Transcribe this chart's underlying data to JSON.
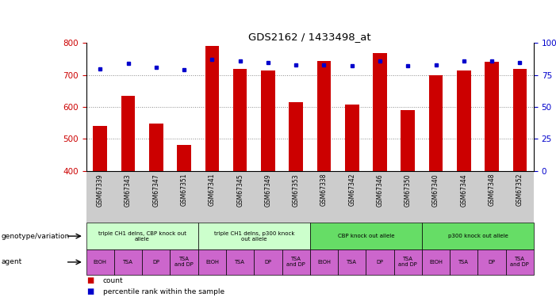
{
  "title": "GDS2162 / 1433498_at",
  "samples": [
    "GSM67339",
    "GSM67343",
    "GSM67347",
    "GSM67351",
    "GSM67341",
    "GSM67345",
    "GSM67349",
    "GSM67353",
    "GSM67338",
    "GSM67342",
    "GSM67346",
    "GSM67350",
    "GSM67340",
    "GSM67344",
    "GSM67348",
    "GSM67352"
  ],
  "counts": [
    540,
    635,
    548,
    480,
    790,
    720,
    715,
    615,
    745,
    607,
    768,
    590,
    700,
    715,
    742,
    718
  ],
  "percentiles": [
    80,
    84,
    81,
    79,
    87,
    86,
    85,
    83,
    83,
    82,
    86,
    82,
    83,
    86,
    86,
    85
  ],
  "y_min": 400,
  "y_max": 800,
  "y_ticks": [
    400,
    500,
    600,
    700,
    800
  ],
  "y2_ticks": [
    0,
    25,
    50,
    75,
    100
  ],
  "bar_color": "#cc0000",
  "dot_color": "#0000cc",
  "grid_color": "#888888",
  "bg_color": "#ffffff",
  "plot_bg": "#ffffff",
  "tick_label_color_left": "#cc0000",
  "tick_label_color_right": "#0000cc",
  "genotype_groups": [
    {
      "label": "triple CH1 delns, CBP knock out\nallele",
      "start": 0,
      "end": 4,
      "color": "#ccffcc"
    },
    {
      "label": "triple CH1 delns, p300 knock\nout allele",
      "start": 4,
      "end": 8,
      "color": "#ccffcc"
    },
    {
      "label": "CBP knock out allele",
      "start": 8,
      "end": 12,
      "color": "#66dd66"
    },
    {
      "label": "p300 knock out allele",
      "start": 12,
      "end": 16,
      "color": "#66dd66"
    }
  ],
  "agent_labels": [
    "EtOH",
    "TSA",
    "DP",
    "TSA\nand DP",
    "EtOH",
    "TSA",
    "DP",
    "TSA\nand DP",
    "EtOH",
    "TSA",
    "DP",
    "TSA\nand DP",
    "EtOH",
    "TSA",
    "DP",
    "TSA\nand DP"
  ],
  "agent_color": "#cc66cc",
  "xlabel_genotype": "genotype/variation",
  "xlabel_agent": "agent",
  "legend_count": "count",
  "legend_pct": "percentile rank within the sample",
  "sample_bg_color": "#cccccc"
}
